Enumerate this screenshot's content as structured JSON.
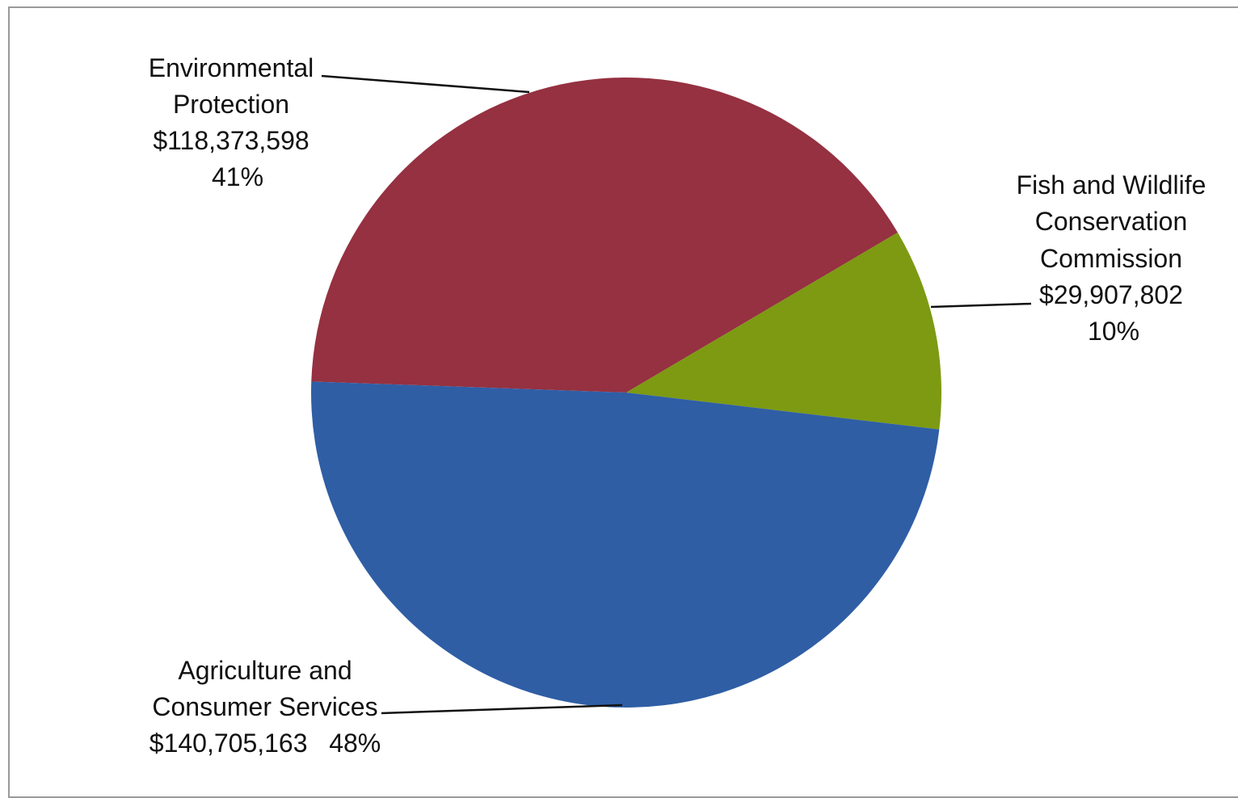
{
  "chart_data": {
    "type": "pie",
    "slices": [
      {
        "label_lines": [
          "Environmental",
          "Protection",
          "$118,373,598",
          "41%"
        ],
        "name": "Environmental Protection",
        "value": 118373598,
        "percent": 41,
        "color": "#953141"
      },
      {
        "label_lines": [
          "Fish and Wildlife",
          "Conservation",
          "Commission",
          "$29,907,802",
          "10%"
        ],
        "name": "Fish and Wildlife Conservation Commission",
        "value": 29907802,
        "percent": 10,
        "color": "#7d9a12"
      },
      {
        "label_lines": [
          "Agriculture and",
          "Consumer Services",
          "$140,705,163   48%"
        ],
        "name": "Agriculture and Consumer Services",
        "value": 140705163,
        "percent": 48,
        "color": "#2f5ea5"
      }
    ]
  }
}
